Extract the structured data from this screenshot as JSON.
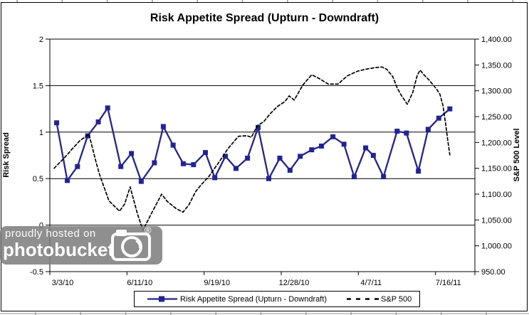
{
  "watermark": {
    "line1": "proudly hosted on",
    "line2": "photobucket",
    "registered": "®"
  },
  "chart_data": {
    "type": "line",
    "title": "Risk Appetite Spread (Upturn - Downdraft)",
    "grid": true,
    "background": "#ffffff",
    "left_axis": {
      "label": "Risk Spread",
      "min": -0.5,
      "max": 2,
      "tick_values": [
        2,
        1.5,
        1,
        0.5,
        0,
        -0.5
      ],
      "tick_labels": [
        "2",
        "1.5",
        "1",
        "0.5",
        "0",
        "-0.5"
      ]
    },
    "right_axis": {
      "label": "S&P 500 Level",
      "min": 950,
      "max": 1400,
      "tick_values": [
        1400,
        1350,
        1300,
        1250,
        1200,
        1150,
        1100,
        1050,
        1000,
        950
      ],
      "tick_labels": [
        "1,400.00",
        "1,350.00",
        "1,300.00",
        "1,250.00",
        "1,200.00",
        "1,150.00",
        "1,100.00",
        "1,050.00",
        "1,000.00",
        "950.00"
      ]
    },
    "x_axis": {
      "ticks": [
        {
          "label": "3/3/10",
          "x": 0
        },
        {
          "label": "6/11/10",
          "x": 0.1814
        },
        {
          "label": "9/19/10",
          "x": 0.363
        },
        {
          "label": "12/28/10",
          "x": 0.5444
        },
        {
          "label": "4/7/11",
          "x": 0.7258
        },
        {
          "label": "7/16/11",
          "x": 0.9074
        }
      ]
    },
    "legend": {
      "position": "bottom",
      "entries": [
        {
          "label": "Risk Appetite Spread (Upturn - Downdraft)",
          "style": "solid-square-marker",
          "color": "#22229C"
        },
        {
          "label": "S&P 500",
          "style": "dashed",
          "color": "#000000"
        }
      ]
    },
    "series": [
      {
        "name": "Risk Appetite Spread (Upturn - Downdraft)",
        "axis": "left",
        "color": "#22229C",
        "marker": "square",
        "points": [
          [
            0.016,
            1.1
          ],
          [
            0.041,
            0.48
          ],
          [
            0.065,
            0.63
          ],
          [
            0.089,
            0.96
          ],
          [
            0.114,
            1.11
          ],
          [
            0.136,
            1.26
          ],
          [
            0.167,
            0.63
          ],
          [
            0.192,
            0.77
          ],
          [
            0.215,
            0.47
          ],
          [
            0.246,
            0.67
          ],
          [
            0.267,
            1.06
          ],
          [
            0.29,
            0.86
          ],
          [
            0.314,
            0.66
          ],
          [
            0.338,
            0.65
          ],
          [
            0.366,
            0.78
          ],
          [
            0.388,
            0.51
          ],
          [
            0.413,
            0.74
          ],
          [
            0.438,
            0.61
          ],
          [
            0.465,
            0.72
          ],
          [
            0.49,
            1.05
          ],
          [
            0.515,
            0.5
          ],
          [
            0.541,
            0.72
          ],
          [
            0.565,
            0.59
          ],
          [
            0.589,
            0.74
          ],
          [
            0.616,
            0.81
          ],
          [
            0.639,
            0.85
          ],
          [
            0.666,
            0.95
          ],
          [
            0.692,
            0.87
          ],
          [
            0.716,
            0.52
          ],
          [
            0.743,
            0.83
          ],
          [
            0.761,
            0.75
          ],
          [
            0.785,
            0.52
          ],
          [
            0.817,
            1.01
          ],
          [
            0.839,
            0.99
          ],
          [
            0.867,
            0.58
          ],
          [
            0.89,
            1.03
          ],
          [
            0.915,
            1.15
          ],
          [
            0.941,
            1.25
          ]
        ]
      },
      {
        "name": "S&P 500",
        "axis": "right",
        "color": "#000000",
        "marker": "none",
        "points": [
          [
            0.01,
            1150
          ],
          [
            0.034,
            1170
          ],
          [
            0.05,
            1185
          ],
          [
            0.07,
            1203
          ],
          [
            0.092,
            1216
          ],
          [
            0.109,
            1161
          ],
          [
            0.117,
            1138
          ],
          [
            0.139,
            1087
          ],
          [
            0.164,
            1067
          ],
          [
            0.176,
            1081
          ],
          [
            0.189,
            1114
          ],
          [
            0.206,
            1062
          ],
          [
            0.219,
            1030
          ],
          [
            0.238,
            1061
          ],
          [
            0.263,
            1100
          ],
          [
            0.276,
            1086
          ],
          [
            0.297,
            1072
          ],
          [
            0.313,
            1065
          ],
          [
            0.327,
            1079
          ],
          [
            0.343,
            1105
          ],
          [
            0.357,
            1119
          ],
          [
            0.374,
            1134
          ],
          [
            0.399,
            1163
          ],
          [
            0.419,
            1188
          ],
          [
            0.444,
            1212
          ],
          [
            0.464,
            1213
          ],
          [
            0.474,
            1210
          ],
          [
            0.489,
            1233
          ],
          [
            0.503,
            1240
          ],
          [
            0.519,
            1256
          ],
          [
            0.536,
            1270
          ],
          [
            0.553,
            1279
          ],
          [
            0.563,
            1290
          ],
          [
            0.575,
            1282
          ],
          [
            0.595,
            1311
          ],
          [
            0.616,
            1331
          ],
          [
            0.633,
            1324
          ],
          [
            0.655,
            1313
          ],
          [
            0.678,
            1313
          ],
          [
            0.7,
            1329
          ],
          [
            0.724,
            1338
          ],
          [
            0.745,
            1342
          ],
          [
            0.767,
            1345
          ],
          [
            0.781,
            1346
          ],
          [
            0.792,
            1342
          ],
          [
            0.807,
            1327
          ],
          [
            0.817,
            1306
          ],
          [
            0.827,
            1291
          ],
          [
            0.841,
            1274
          ],
          [
            0.854,
            1297
          ],
          [
            0.864,
            1329
          ],
          [
            0.871,
            1340
          ],
          [
            0.881,
            1330
          ],
          [
            0.891,
            1322
          ],
          [
            0.9,
            1313
          ],
          [
            0.91,
            1303
          ],
          [
            0.918,
            1293
          ],
          [
            0.925,
            1271
          ],
          [
            0.931,
            1237
          ],
          [
            0.936,
            1205
          ],
          [
            0.941,
            1176
          ]
        ]
      }
    ]
  }
}
